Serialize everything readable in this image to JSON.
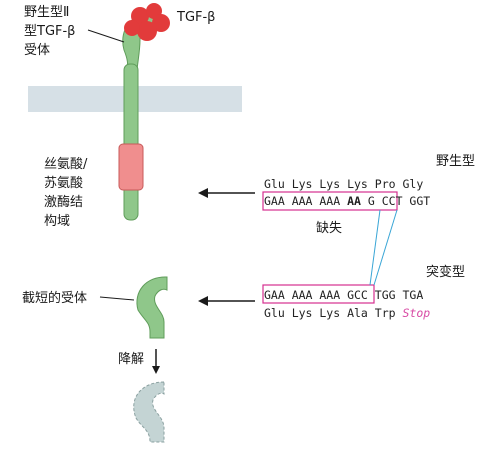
{
  "labels": {
    "wild_receptor": [
      "野生型Ⅱ",
      "型TGF-β",
      "受体"
    ],
    "ligand": "TGF-β",
    "kinase_domain": [
      "丝氨酸/",
      "苏氨酸",
      "激酶结",
      "构域"
    ],
    "truncated_receptor": "截短的受体",
    "degradation": "降解",
    "wildtype": "野生型",
    "deletion": "缺失",
    "mutant": "突变型"
  },
  "sequences": {
    "wild_aa": "Glu Lys Lys Lys Pro Gly",
    "wild_nt_prefix": "GAA AAA AAA ",
    "wild_nt_deleted": "AA",
    "wild_nt_suffix": " G CCT GGT",
    "mutant_nt": "GAA AAA AAA GCC TGG TGA",
    "mutant_aa": "Glu Lys Lys Ala Trp ",
    "mutant_stop": "Stop"
  },
  "colors": {
    "receptor": "#8fc78a",
    "receptor_stroke": "#5f9c5a",
    "ligand": "#e23b3b",
    "membrane": "#d6e0e6",
    "kinase": "#f08e8e",
    "box": "#d62f8f",
    "deletion_line": "#3aa6d6",
    "stop": "#d84aa4",
    "degraded": "#c4d4d4"
  }
}
